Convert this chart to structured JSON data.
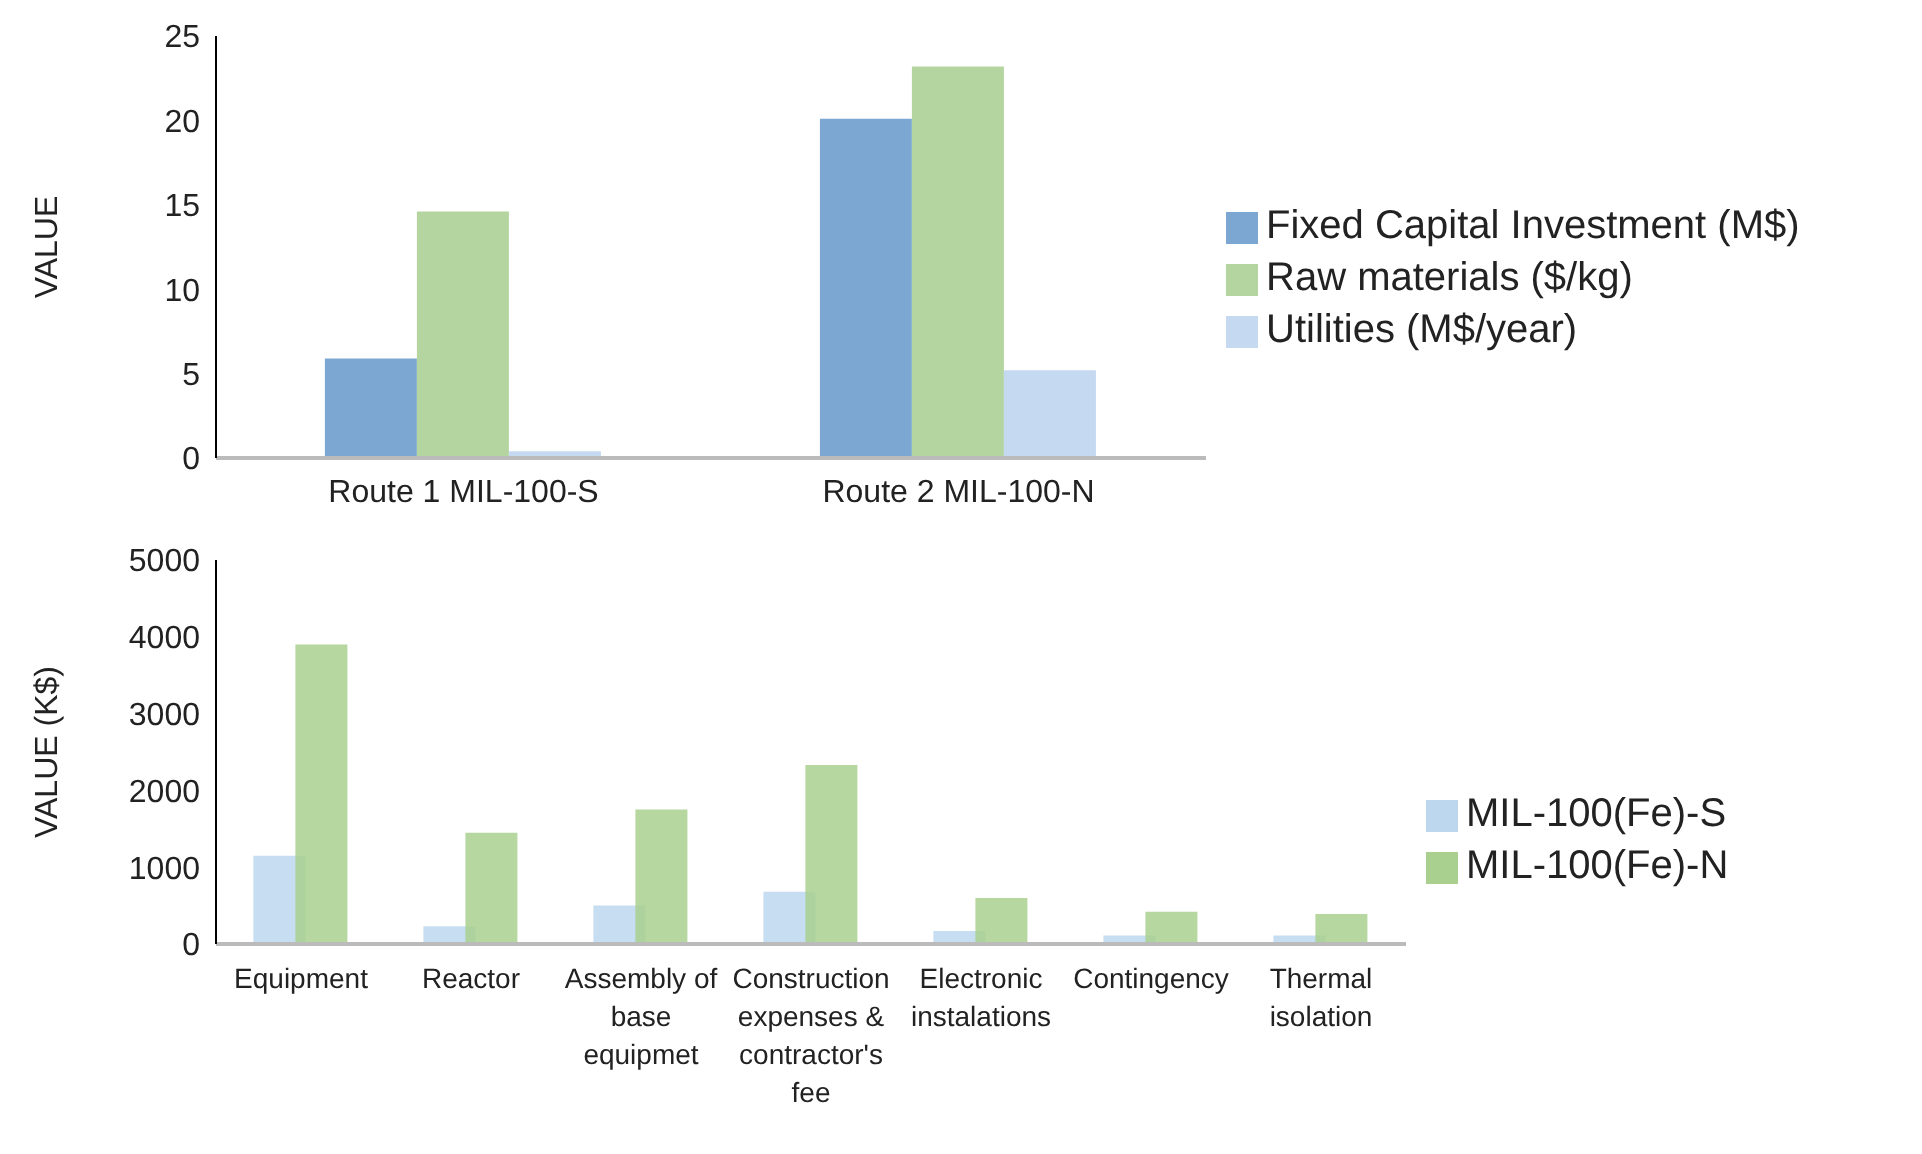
{
  "chart_data": [
    {
      "type": "bar",
      "ylabel": "VALUE",
      "categories": [
        "Route 1 MIL-100-S",
        "Route 2 MIL-100-N"
      ],
      "series": [
        {
          "name": "Fixed Capital Investment (M$)",
          "color": "#7ba7d2",
          "values": [
            5.9,
            20.1
          ]
        },
        {
          "name": "Raw materials ($/kg)",
          "color": "#b5d5a0",
          "values": [
            14.6,
            23.2
          ]
        },
        {
          "name": "Utilities  (M$/year)",
          "color": "#c5d9f0",
          "values": [
            0.4,
            5.2
          ]
        }
      ],
      "ylim": [
        0,
        25
      ],
      "yticks": [
        0,
        5,
        10,
        15,
        20,
        25
      ],
      "grid": false,
      "legend": "right"
    },
    {
      "type": "bar",
      "ylabel": "VALUE (K$)",
      "categories": [
        "Equipment",
        "Reactor",
        "Assembly of base equipmet",
        "Construction expenses & contractor's fee",
        "Electronic instalations",
        "Contingency",
        "Thermal isolation"
      ],
      "series": [
        {
          "name": "MIL-100(Fe)-S",
          "color": "#bdd7ee",
          "values": [
            1150,
            230,
            500,
            680,
            170,
            110,
            110
          ]
        },
        {
          "name": "MIL-100(Fe)-N",
          "color": "#a9d08e",
          "values": [
            3900,
            1450,
            1750,
            2330,
            600,
            420,
            390
          ]
        }
      ],
      "ylim": [
        0,
        5000
      ],
      "yticks": [
        0,
        1000,
        2000,
        3000,
        4000,
        5000
      ],
      "grid": false,
      "legend": "right"
    }
  ]
}
